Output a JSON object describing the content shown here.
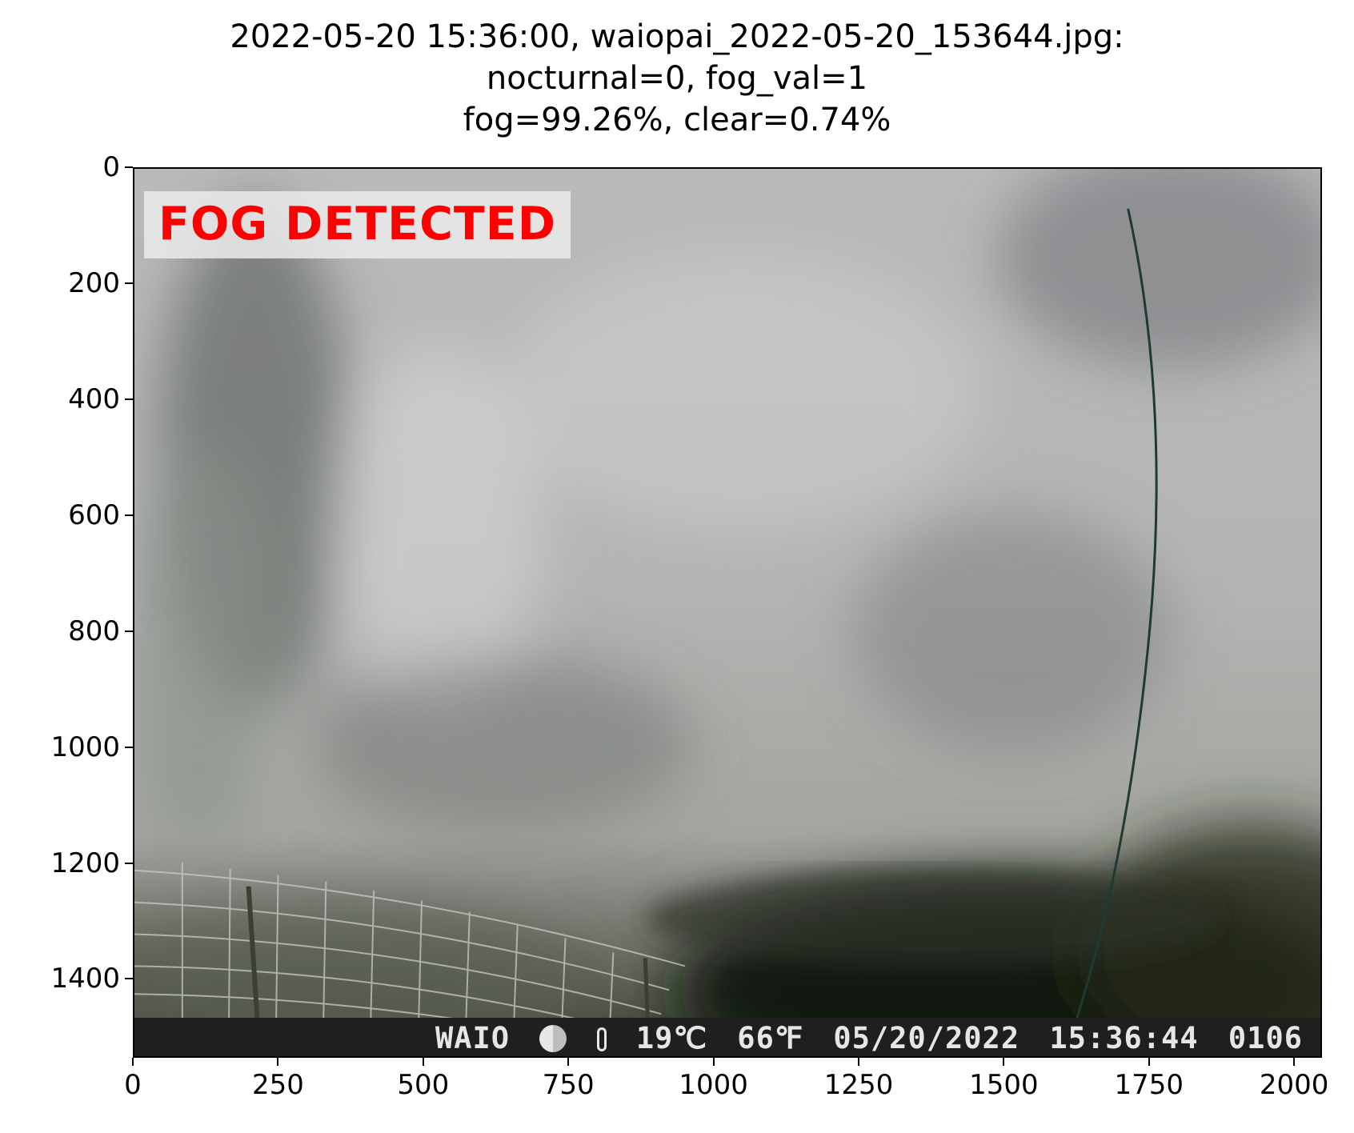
{
  "title": {
    "line1": "2022-05-20 15:36:00, waiopai_2022-05-20_153644.jpg:",
    "line2": "nocturnal=0, fog_val=1",
    "line3": "fog=99.26%, clear=0.74%"
  },
  "status_label": "FOG DETECTED",
  "osd": {
    "station": "WAIO",
    "temp_c": "19℃",
    "temp_f": "66℉",
    "date": "05/20/2022",
    "time": "15:36:44",
    "frame": "0106"
  },
  "icons": [
    "sun-moon-icon",
    "thermometer-icon"
  ],
  "colors": {
    "label_red": "#ff0000",
    "osd_bg": "#1f1f1f"
  },
  "x_ticks": [
    "0",
    "250",
    "500",
    "750",
    "1000",
    "1250",
    "1500",
    "1750",
    "2000"
  ],
  "y_ticks": [
    "0",
    "200",
    "400",
    "600",
    "800",
    "1000",
    "1200",
    "1400"
  ]
}
